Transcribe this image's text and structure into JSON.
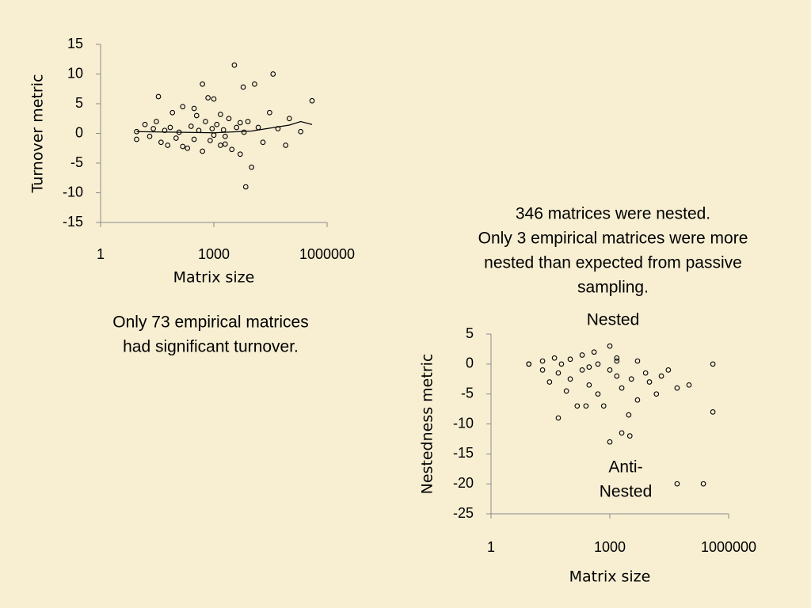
{
  "chart_data": [
    {
      "type": "scatter",
      "xlabel": "Matrix size",
      "ylabel": "Turnover metric",
      "xscale": "log",
      "xlim": [
        1,
        1000000
      ],
      "xticks": [
        1,
        1000,
        1000000
      ],
      "ylim": [
        -15,
        15
      ],
      "yticks": [
        -15,
        -10,
        -5,
        0,
        5,
        10,
        15
      ],
      "color": "#000000",
      "x": [
        9,
        9,
        15,
        20,
        25,
        30,
        34,
        40,
        50,
        60,
        70,
        80,
        100,
        120,
        150,
        200,
        250,
        300,
        350,
        400,
        500,
        500,
        600,
        700,
        800,
        900,
        1000,
        1000,
        1200,
        1500,
        1500,
        1800,
        2000,
        2500,
        3000,
        3500,
        4000,
        5000,
        6000,
        6300,
        7000,
        8000,
        10000,
        12000,
        15000,
        20000,
        30000,
        37000,
        50000,
        80000,
        100000,
        200000,
        400000,
        150,
        300,
        2000,
        5000
      ],
      "values": [
        0.3,
        -1,
        1.5,
        -0.5,
        0.8,
        2,
        6.2,
        -1.5,
        0.5,
        -2,
        1,
        3.5,
        -0.8,
        0.2,
        4.5,
        -2.5,
        1.2,
        -1,
        3,
        0.5,
        8.3,
        -3,
        2,
        6,
        -1.2,
        0.8,
        -0.3,
        5.8,
        1.5,
        -2,
        3.2,
        0.6,
        -1.8,
        2.5,
        -2.7,
        11.5,
        1,
        -3.5,
        7.8,
        0.2,
        -9,
        2,
        -5.7,
        8.3,
        1,
        -1.5,
        3.5,
        10,
        0.8,
        -2,
        2.5,
        0.3,
        5.5,
        -2.2,
        4.2,
        -0.5,
        1.8
      ],
      "trend": {
        "x": [
          9,
          100,
          1000,
          10000,
          100000,
          200000,
          400000
        ],
        "values": [
          0.3,
          0.2,
          0.1,
          0.4,
          1.4,
          2,
          1.5
        ]
      },
      "annotations": [
        {
          "lines": [
            "Only 73 empirical matrices",
            "had significant turnover."
          ]
        }
      ]
    },
    {
      "type": "scatter",
      "xlabel": "Matrix size",
      "ylabel": "Nestedness metric",
      "xscale": "log",
      "xlim": [
        1,
        1000000
      ],
      "xticks": [
        1,
        1000,
        1000000
      ],
      "ylim": [
        -25,
        5
      ],
      "yticks": [
        -25,
        -20,
        -15,
        -10,
        -5,
        0,
        5
      ],
      "color": "#000000",
      "x": [
        9,
        9,
        20,
        20,
        30,
        40,
        50,
        50,
        60,
        80,
        100,
        100,
        150,
        200,
        200,
        300,
        300,
        400,
        500,
        500,
        700,
        1000,
        1000,
        1000,
        1500,
        1500,
        2000,
        2000,
        3000,
        3200,
        3500,
        5000,
        5000,
        8000,
        10000,
        15000,
        20000,
        30000,
        50000,
        50000,
        100000,
        230000,
        400000,
        400000,
        1500,
        250
      ],
      "values": [
        0,
        0,
        -1,
        0.5,
        -3,
        1,
        -9,
        -1.5,
        0,
        -4.5,
        0.8,
        -2.5,
        -7,
        -1,
        1.5,
        -0.5,
        -3.5,
        2,
        0,
        -5,
        -7,
        3,
        -1,
        -13,
        -2,
        0.5,
        -11.5,
        -4,
        -8.5,
        -12,
        -2.5,
        -6,
        0.5,
        -1.5,
        -3,
        -5,
        -2,
        -1,
        -20,
        -4,
        -3.5,
        -20,
        -8,
        0,
        1,
        -7
      ],
      "annotations": [
        {
          "lines": [
            "346 matrices were nested.",
            "Only 3 empirical matrices were more",
            "nested than expected from passive",
            "sampling."
          ]
        },
        {
          "lines": [
            "Nested"
          ]
        },
        {
          "lines": [
            "Anti-",
            "Nested"
          ]
        }
      ]
    }
  ]
}
